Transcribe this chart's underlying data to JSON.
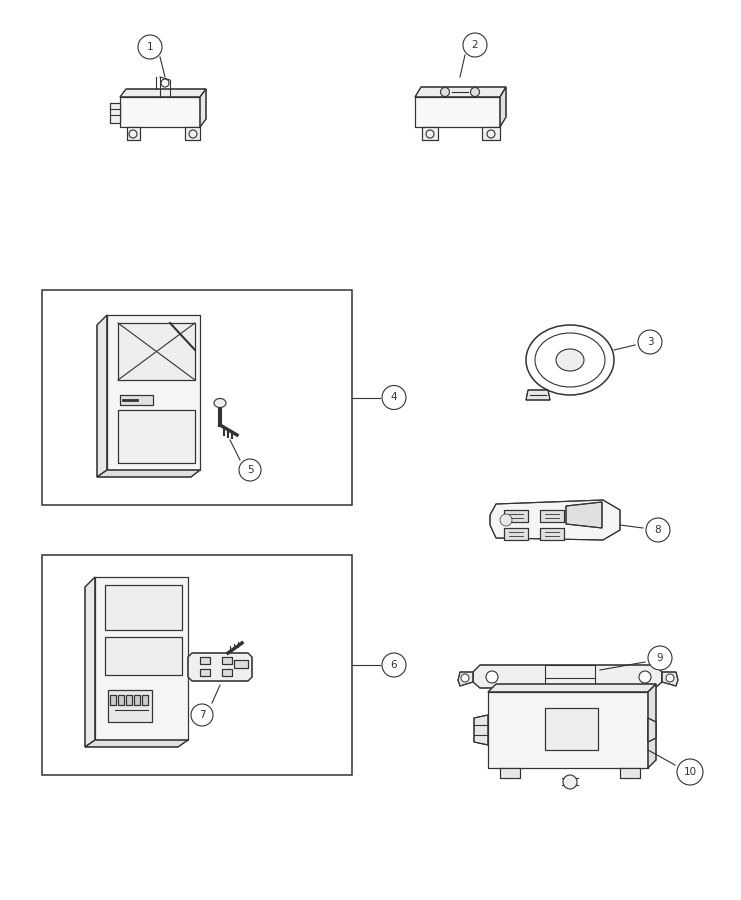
{
  "bg_color": "#ffffff",
  "line_color": "#333333",
  "fig_width": 7.41,
  "fig_height": 9.0,
  "dpi": 100,
  "lw": 0.8,
  "label_r": 0.018,
  "label_fs": 7.5
}
